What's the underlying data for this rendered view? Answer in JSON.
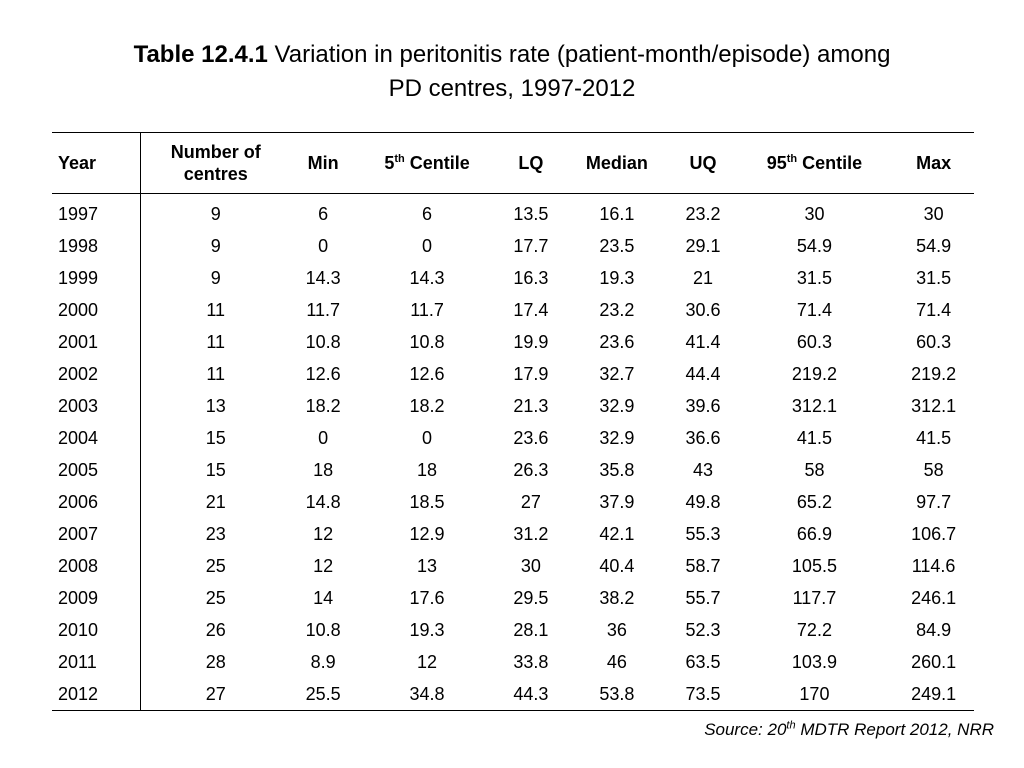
{
  "title": {
    "bold": "Table 12.4.1",
    "text": " Variation in peritonitis rate (patient-month/episode) among",
    "line2": "PD centres, 1997-2012"
  },
  "table": {
    "headers": {
      "year": "Year",
      "centres_line1": "Number of",
      "centres_line2": "centres",
      "min": "Min",
      "p5_base": "5",
      "p5_sup": "th",
      "p5_rest": " Centile",
      "lq": "LQ",
      "median": "Median",
      "uq": "UQ",
      "p95_base": "95",
      "p95_sup": "th",
      "p95_rest": " Centile",
      "max": "Max"
    },
    "rows": [
      [
        "1997",
        "9",
        "6",
        "6",
        "13.5",
        "16.1",
        "23.2",
        "30",
        "30"
      ],
      [
        "1998",
        "9",
        "0",
        "0",
        "17.7",
        "23.5",
        "29.1",
        "54.9",
        "54.9"
      ],
      [
        "1999",
        "9",
        "14.3",
        "14.3",
        "16.3",
        "19.3",
        "21",
        "31.5",
        "31.5"
      ],
      [
        "2000",
        "11",
        "11.7",
        "11.7",
        "17.4",
        "23.2",
        "30.6",
        "71.4",
        "71.4"
      ],
      [
        "2001",
        "11",
        "10.8",
        "10.8",
        "19.9",
        "23.6",
        "41.4",
        "60.3",
        "60.3"
      ],
      [
        "2002",
        "11",
        "12.6",
        "12.6",
        "17.9",
        "32.7",
        "44.4",
        "219.2",
        "219.2"
      ],
      [
        "2003",
        "13",
        "18.2",
        "18.2",
        "21.3",
        "32.9",
        "39.6",
        "312.1",
        "312.1"
      ],
      [
        "2004",
        "15",
        "0",
        "0",
        "23.6",
        "32.9",
        "36.6",
        "41.5",
        "41.5"
      ],
      [
        "2005",
        "15",
        "18",
        "18",
        "26.3",
        "35.8",
        "43",
        "58",
        "58"
      ],
      [
        "2006",
        "21",
        "14.8",
        "18.5",
        "27",
        "37.9",
        "49.8",
        "65.2",
        "97.7"
      ],
      [
        "2007",
        "23",
        "12",
        "12.9",
        "31.2",
        "42.1",
        "55.3",
        "66.9",
        "106.7"
      ],
      [
        "2008",
        "25",
        "12",
        "13",
        "30",
        "40.4",
        "58.7",
        "105.5",
        "114.6"
      ],
      [
        "2009",
        "25",
        "14",
        "17.6",
        "29.5",
        "38.2",
        "55.7",
        "117.7",
        "246.1"
      ],
      [
        "2010",
        "26",
        "10.8",
        "19.3",
        "28.1",
        "36",
        "52.3",
        "72.2",
        "84.9"
      ],
      [
        "2011",
        "28",
        "8.9",
        "12",
        "33.8",
        "46",
        "63.5",
        "103.9",
        "260.1"
      ],
      [
        "2012",
        "27",
        "25.5",
        "34.8",
        "44.3",
        "53.8",
        "73.5",
        "170",
        "249.1"
      ]
    ]
  },
  "source": {
    "prefix": "Source: 20",
    "sup": "th",
    "suffix": " MDTR Report 2012, NRR"
  }
}
